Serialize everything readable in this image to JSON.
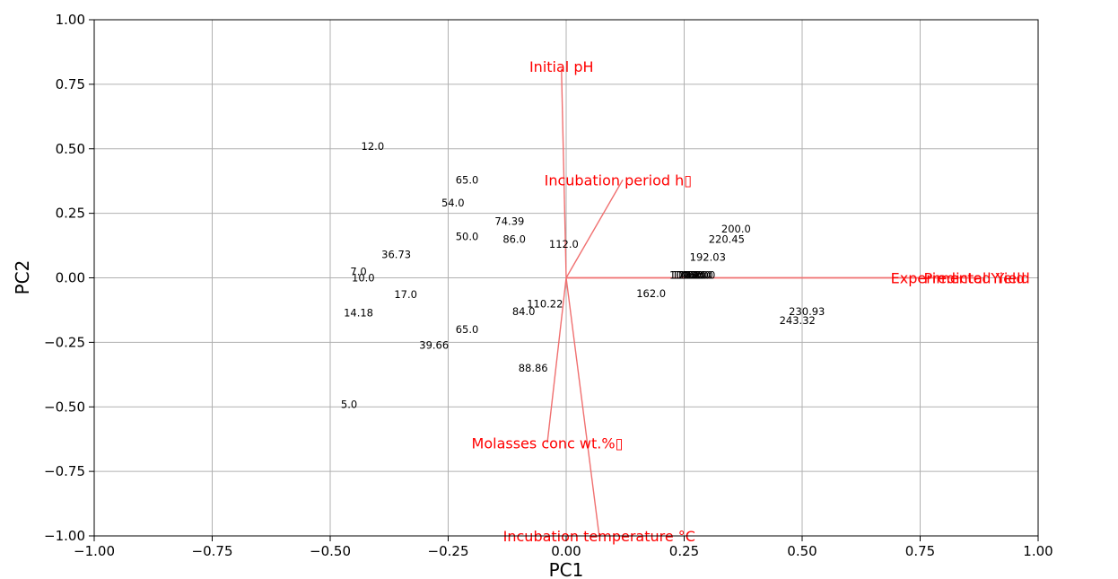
{
  "chart_data": {
    "type": "biplot",
    "xlabel": "PC1",
    "ylabel": "PC2",
    "xlim": [
      -1.0,
      1.0
    ],
    "ylim": [
      -1.0,
      1.0
    ],
    "grid": true,
    "xticks": [
      -1.0,
      -0.75,
      -0.5,
      -0.25,
      0.0,
      0.25,
      0.5,
      0.75,
      1.0
    ],
    "yticks": [
      -1.0,
      -0.75,
      -0.5,
      -0.25,
      0.0,
      0.25,
      0.5,
      0.75,
      1.0
    ],
    "xtick_labels": [
      "−1.00",
      "−0.75",
      "−0.50",
      "−0.25",
      "0.00",
      "0.25",
      "0.50",
      "0.75",
      "1.00"
    ],
    "ytick_labels": [
      "−1.00",
      "−0.75",
      "−0.50",
      "−0.25",
      "0.00",
      "0.25",
      "0.50",
      "0.75",
      "1.00"
    ],
    "loading_color": "#ff0000",
    "loading_line_color": "#f07070",
    "point_label_color": "#000000",
    "loadings": [
      {
        "name": "Initial pH",
        "x": -0.01,
        "y": 0.81,
        "label_x": -0.01,
        "label_y": 0.82
      },
      {
        "name": "Incubation period h▯",
        "x": 0.12,
        "y": 0.38,
        "label_x": 0.11,
        "label_y": 0.38
      },
      {
        "name": "Experimental Yield",
        "x": 0.88,
        "y": 0.0,
        "label_x": 0.83,
        "label_y": 0.0
      },
      {
        "name": "Predicted Yield",
        "x": 0.88,
        "y": 0.0,
        "label_x": 0.87,
        "label_y": 0.0
      },
      {
        "name": "Molasses conc wt.%▯",
        "x": -0.04,
        "y": -0.64,
        "label_x": -0.04,
        "label_y": -0.64
      },
      {
        "name": "Incubation temperature °C",
        "x": 0.07,
        "y": -1.0,
        "label_x": 0.07,
        "label_y": -1.0
      }
    ],
    "point_labels": [
      {
        "text": "12.0",
        "x": -0.41,
        "y": 0.51
      },
      {
        "text": "65.0",
        "x": -0.21,
        "y": 0.38
      },
      {
        "text": "54.0",
        "x": -0.24,
        "y": 0.29
      },
      {
        "text": "74.39",
        "x": -0.12,
        "y": 0.22
      },
      {
        "text": "50.0",
        "x": -0.21,
        "y": 0.16
      },
      {
        "text": "86.0",
        "x": -0.11,
        "y": 0.15
      },
      {
        "text": "112.0",
        "x": -0.005,
        "y": 0.13
      },
      {
        "text": "36.73",
        "x": -0.36,
        "y": 0.09
      },
      {
        "text": "7.0",
        "x": -0.44,
        "y": 0.025
      },
      {
        "text": "10.0",
        "x": -0.43,
        "y": 0.0
      },
      {
        "text": "17.0",
        "x": -0.34,
        "y": -0.065
      },
      {
        "text": "14.18",
        "x": -0.44,
        "y": -0.135
      },
      {
        "text": "84.0",
        "x": -0.09,
        "y": -0.13
      },
      {
        "text": "110.22",
        "x": -0.045,
        "y": -0.1
      },
      {
        "text": "65.0",
        "x": -0.21,
        "y": -0.2
      },
      {
        "text": "39.66",
        "x": -0.28,
        "y": -0.26
      },
      {
        "text": "88.86",
        "x": -0.07,
        "y": -0.35
      },
      {
        "text": "5.0",
        "x": -0.46,
        "y": -0.49
      },
      {
        "text": "200.0",
        "x": 0.36,
        "y": 0.19
      },
      {
        "text": "220.45",
        "x": 0.34,
        "y": 0.15
      },
      {
        "text": "192.03",
        "x": 0.3,
        "y": 0.08
      },
      {
        "text": "162.0",
        "x": 0.18,
        "y": -0.06
      },
      {
        "text": "230.93",
        "x": 0.51,
        "y": -0.13
      },
      {
        "text": "243.32",
        "x": 0.49,
        "y": -0.165
      },
      {
        "text": "104.0",
        "x": 0.25,
        "y": 0.01
      },
      {
        "text": "128.0",
        "x": 0.255,
        "y": 0.01
      },
      {
        "text": "140.0",
        "x": 0.26,
        "y": 0.01
      },
      {
        "text": "136.0",
        "x": 0.265,
        "y": 0.01
      },
      {
        "text": "148.0",
        "x": 0.27,
        "y": 0.01
      },
      {
        "text": "152.0",
        "x": 0.275,
        "y": 0.01
      },
      {
        "text": "132.0",
        "x": 0.28,
        "y": 0.01
      },
      {
        "text": "144.0",
        "x": 0.285,
        "y": 0.01
      }
    ]
  }
}
